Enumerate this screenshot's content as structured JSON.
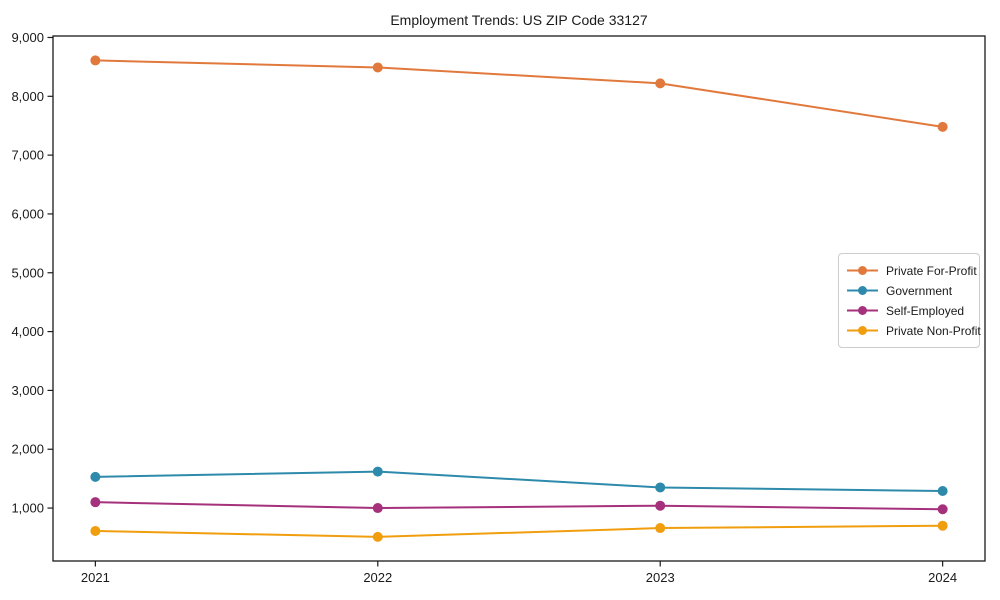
{
  "title": "Employment Trends: US ZIP Code 33127",
  "chart_data": {
    "type": "line",
    "title": "Employment Trends: US ZIP Code 33127",
    "xlabel": "",
    "ylabel": "",
    "grid": false,
    "legend_position": "center-right",
    "x": [
      2021,
      2022,
      2023,
      2024
    ],
    "x_tick_labels": [
      "2021",
      "2022",
      "2023",
      "2024"
    ],
    "xlim": [
      2020.85,
      2024.15
    ],
    "ylim": [
      100,
      9025
    ],
    "y_ticks": [
      1000,
      2000,
      3000,
      4000,
      5000,
      6000,
      7000,
      8000,
      9000
    ],
    "y_tick_labels": [
      "1,000",
      "2,000",
      "3,000",
      "4,000",
      "5,000",
      "6,000",
      "7,000",
      "8,000",
      "9,000"
    ],
    "series": [
      {
        "name": "Private For-Profit",
        "color": "#e1793d",
        "values": [
          8610,
          8490,
          8220,
          7480
        ]
      },
      {
        "name": "Government",
        "color": "#2e8aab",
        "values": [
          1530,
          1620,
          1350,
          1290
        ]
      },
      {
        "name": "Self-Employed",
        "color": "#a5317c",
        "values": [
          1100,
          1000,
          1040,
          980
        ]
      },
      {
        "name": "Private Non-Profit",
        "color": "#f09e0e",
        "values": [
          610,
          510,
          660,
          700
        ]
      }
    ]
  }
}
